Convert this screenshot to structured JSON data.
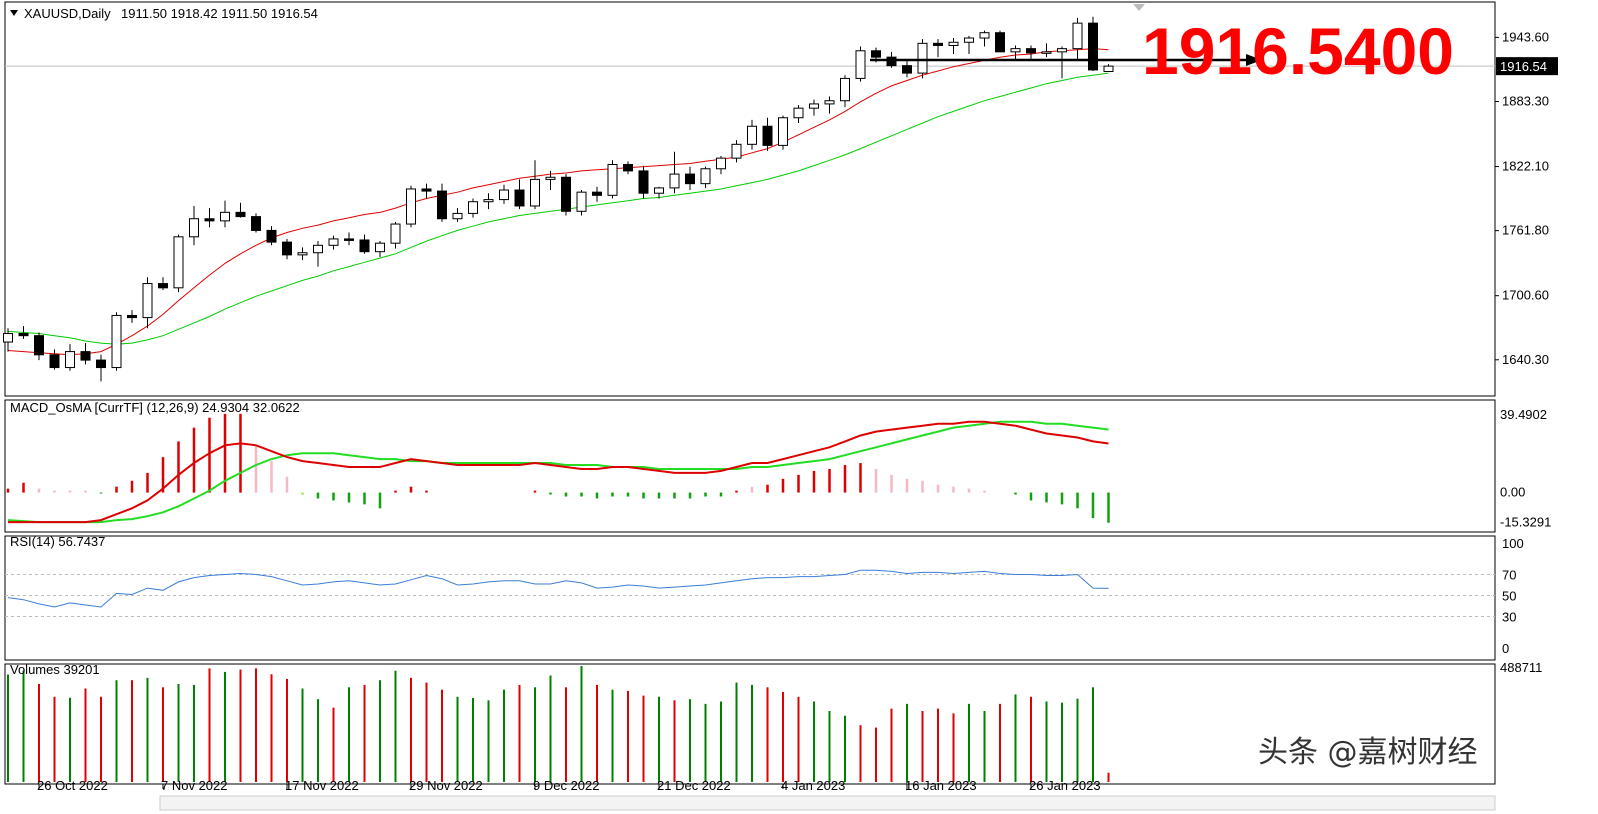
{
  "colors": {
    "bull_candle": "#ffffff",
    "bear_candle": "#000000",
    "ma_fast": "#e00000",
    "ma_slow": "#00cc00",
    "macd_line": "#dd0000",
    "signal_line": "#22dd22",
    "osma_up_strong": "#dd0000",
    "osma_up_weak": "#f5b8c2",
    "osma_down_strong": "#10a010",
    "osma_down_weak": "#88ee44",
    "rsi_line": "#3b7dd8",
    "volume_up": "#008000",
    "volume_down": "#e00000",
    "big_label": "#ff0000"
  },
  "header": {
    "symbol_label": "XAUUSD,Daily",
    "ohlc_text": "1911.50 1918.42 1911.50 1916.54"
  },
  "big_label": "1916.5400",
  "watermark": "头条 @嘉树财经",
  "chart_data": [
    {
      "type": "candlestick",
      "title": "XAUUSD,Daily",
      "ohlc": [
        1911.5,
        1918.42,
        1911.5,
        1916.54
      ],
      "current_price_label": "1916.54",
      "yticks": [
        "1943.60",
        "1883.30",
        "1822.10",
        "1761.80",
        "1700.60",
        "1640.30"
      ],
      "ylim": [
        1610,
        1975
      ],
      "xticks": [
        {
          "index": 2,
          "label": "26 Oct 2022"
        },
        {
          "index": 10,
          "label": "7 Nov 2022"
        },
        {
          "index": 18,
          "label": "17 Nov 2022"
        },
        {
          "index": 26,
          "label": "29 Nov 2022"
        },
        {
          "index": 34,
          "label": "9 Dec 2022"
        },
        {
          "index": 42,
          "label": "21 Dec 2022"
        },
        {
          "index": 50,
          "label": "4 Jan 2023"
        },
        {
          "index": 58,
          "label": "16 Jan 2023"
        },
        {
          "index": 66,
          "label": "26 Jan 2023"
        }
      ],
      "candles": [
        [
          1657,
          1670,
          1648,
          1665
        ],
        [
          1665,
          1672,
          1660,
          1663
        ],
        [
          1663,
          1666,
          1640,
          1645
        ],
        [
          1645,
          1650,
          1631,
          1633
        ],
        [
          1633,
          1655,
          1630,
          1648
        ],
        [
          1648,
          1656,
          1636,
          1640
        ],
        [
          1640,
          1645,
          1620,
          1633
        ],
        [
          1633,
          1685,
          1630,
          1682
        ],
        [
          1682,
          1687,
          1675,
          1680
        ],
        [
          1680,
          1718,
          1670,
          1712
        ],
        [
          1712,
          1718,
          1706,
          1708
        ],
        [
          1708,
          1758,
          1704,
          1756
        ],
        [
          1756,
          1785,
          1748,
          1773
        ],
        [
          1773,
          1783,
          1765,
          1771
        ],
        [
          1771,
          1790,
          1765,
          1779
        ],
        [
          1779,
          1788,
          1774,
          1775
        ],
        [
          1775,
          1778,
          1760,
          1762
        ],
        [
          1762,
          1766,
          1748,
          1751
        ],
        [
          1751,
          1754,
          1735,
          1739
        ],
        [
          1739,
          1746,
          1734,
          1741
        ],
        [
          1741,
          1752,
          1728,
          1748
        ],
        [
          1748,
          1757,
          1744,
          1754
        ],
        [
          1754,
          1760,
          1748,
          1753
        ],
        [
          1753,
          1758,
          1740,
          1742
        ],
        [
          1742,
          1752,
          1737,
          1750
        ],
        [
          1750,
          1770,
          1745,
          1768
        ],
        [
          1768,
          1804,
          1765,
          1801
        ],
        [
          1801,
          1806,
          1792,
          1799
        ],
        [
          1799,
          1806,
          1770,
          1773
        ],
        [
          1773,
          1783,
          1770,
          1778
        ],
        [
          1778,
          1792,
          1774,
          1789
        ],
        [
          1789,
          1797,
          1782,
          1791
        ],
        [
          1791,
          1805,
          1787,
          1800
        ],
        [
          1800,
          1810,
          1782,
          1785
        ],
        [
          1785,
          1828,
          1782,
          1810
        ],
        [
          1810,
          1818,
          1800,
          1812
        ],
        [
          1812,
          1815,
          1776,
          1780
        ],
        [
          1780,
          1800,
          1776,
          1798
        ],
        [
          1798,
          1803,
          1789,
          1795
        ],
        [
          1795,
          1828,
          1792,
          1824
        ],
        [
          1824,
          1827,
          1815,
          1818
        ],
        [
          1818,
          1823,
          1792,
          1797
        ],
        [
          1797,
          1803,
          1792,
          1802
        ],
        [
          1802,
          1836,
          1797,
          1815
        ],
        [
          1815,
          1822,
          1800,
          1806
        ],
        [
          1806,
          1822,
          1802,
          1820
        ],
        [
          1820,
          1832,
          1815,
          1830
        ],
        [
          1830,
          1847,
          1826,
          1843
        ],
        [
          1843,
          1866,
          1838,
          1860
        ],
        [
          1860,
          1868,
          1837,
          1842
        ],
        [
          1842,
          1870,
          1838,
          1868
        ],
        [
          1868,
          1880,
          1863,
          1877
        ],
        [
          1877,
          1885,
          1870,
          1881
        ],
        [
          1881,
          1888,
          1872,
          1884
        ],
        [
          1884,
          1908,
          1878,
          1905
        ],
        [
          1905,
          1935,
          1902,
          1931
        ],
        [
          1931,
          1934,
          1920,
          1925
        ],
        [
          1925,
          1930,
          1915,
          1917
        ],
        [
          1917,
          1923,
          1906,
          1910
        ],
        [
          1910,
          1942,
          1905,
          1938
        ],
        [
          1938,
          1942,
          1925,
          1936
        ],
        [
          1936,
          1943,
          1928,
          1939
        ],
        [
          1939,
          1945,
          1928,
          1943
        ],
        [
          1943,
          1950,
          1935,
          1948
        ],
        [
          1948,
          1950,
          1930,
          1930
        ],
        [
          1930,
          1936,
          1923,
          1933
        ],
        [
          1933,
          1936,
          1923,
          1929
        ],
        [
          1929,
          1938,
          1925,
          1930
        ],
        [
          1930,
          1935,
          1905,
          1933
        ],
        [
          1933,
          1962,
          1922,
          1957
        ],
        [
          1957,
          1963,
          1912,
          1913
        ],
        [
          1911.5,
          1918.42,
          1911.5,
          1916.54
        ]
      ],
      "ma_fast": [
        1649,
        1648,
        1647,
        1646,
        1645,
        1646,
        1648,
        1655,
        1663,
        1672,
        1683,
        1696,
        1708,
        1720,
        1731,
        1740,
        1748,
        1755,
        1760,
        1764,
        1767,
        1771,
        1774,
        1777,
        1779,
        1783,
        1788,
        1792,
        1795,
        1798,
        1802,
        1805,
        1808,
        1811,
        1813,
        1815,
        1816,
        1818,
        1819,
        1820,
        1821,
        1822,
        1823,
        1824,
        1825,
        1827,
        1829,
        1831,
        1835,
        1839,
        1845,
        1852,
        1859,
        1866,
        1874,
        1883,
        1891,
        1898,
        1903,
        1908,
        1912,
        1916,
        1919,
        1922,
        1925,
        1927,
        1928,
        1930,
        1931,
        1932,
        1933,
        1932
      ],
      "ma_slow": [
        1667,
        1666,
        1665,
        1663,
        1661,
        1658,
        1656,
        1655,
        1656,
        1659,
        1663,
        1669,
        1675,
        1681,
        1688,
        1694,
        1700,
        1705,
        1710,
        1715,
        1719,
        1724,
        1728,
        1732,
        1736,
        1740,
        1746,
        1752,
        1757,
        1762,
        1766,
        1770,
        1773,
        1776,
        1778,
        1780,
        1782,
        1784,
        1786,
        1788,
        1790,
        1792,
        1793,
        1795,
        1797,
        1799,
        1801,
        1804,
        1807,
        1810,
        1814,
        1818,
        1823,
        1828,
        1833,
        1839,
        1845,
        1851,
        1857,
        1863,
        1869,
        1874,
        1879,
        1884,
        1888,
        1892,
        1896,
        1900,
        1903,
        1906,
        1908,
        1910
      ]
    },
    {
      "type": "line",
      "title": "MACD_OsMA [CurrTF] (12,26,9) 24.9304 32.0622",
      "yticks": [
        "39.4902",
        "0.00",
        "-15.3291"
      ],
      "ylim": [
        -18,
        45
      ],
      "macd": [
        -15,
        -15,
        -15,
        -15,
        -15,
        -15,
        -14,
        -11,
        -8,
        -4,
        2,
        9,
        15,
        20,
        24,
        25,
        24,
        21,
        18,
        16,
        15,
        14,
        13,
        13,
        13,
        15,
        17,
        16,
        15,
        14,
        14,
        14,
        14,
        14,
        15,
        14,
        13,
        12,
        12,
        13,
        13,
        12,
        11,
        10,
        10,
        10,
        11,
        13,
        15,
        15,
        17,
        19,
        21,
        23,
        26,
        29,
        31,
        32,
        33,
        34,
        35,
        35,
        36,
        36,
        35,
        34,
        32,
        30,
        29,
        28,
        26,
        24.93
      ],
      "signal": [
        -14,
        -14.5,
        -15,
        -15,
        -15,
        -15,
        -15,
        -14,
        -13.5,
        -12,
        -10,
        -7,
        -3,
        1,
        6,
        10,
        14,
        17,
        19,
        20,
        20,
        20,
        19,
        18,
        17,
        17,
        16,
        16,
        15,
        15,
        15,
        15,
        15,
        15,
        15,
        15,
        14,
        14,
        14,
        13,
        13,
        13,
        12,
        12,
        12,
        12,
        12,
        12,
        13,
        13,
        14,
        15,
        16,
        17,
        19,
        21,
        23,
        25,
        27,
        29,
        31,
        33,
        34,
        35,
        36,
        36,
        36,
        35,
        35,
        34,
        33,
        32.06
      ],
      "osma": [
        2,
        5,
        2,
        1,
        1,
        1,
        -0.5,
        3,
        6,
        10,
        18,
        26,
        33,
        38,
        40,
        40,
        24,
        16,
        8,
        -1,
        -3,
        -4,
        -5,
        -6,
        -8,
        1,
        3,
        1,
        0,
        0,
        0,
        0,
        0,
        0,
        1,
        -1,
        -2,
        -2,
        -3,
        -2,
        -2,
        -3,
        -3,
        -3,
        -3,
        -2,
        -2,
        1,
        3,
        4,
        7,
        9,
        11,
        12,
        14,
        15,
        12,
        9,
        7,
        6,
        4,
        3,
        2,
        1,
        0,
        -1,
        -4,
        -5,
        -6,
        -8,
        -13,
        -15.33
      ],
      "osma_shade": [
        "d",
        "s",
        "w",
        "w",
        "w",
        "w",
        "s",
        "s",
        "s",
        "s",
        "s",
        "s",
        "s",
        "s",
        "s",
        "s",
        "w",
        "w",
        "w",
        "w",
        "s",
        "s",
        "s",
        "s",
        "s",
        "s",
        "s",
        "s",
        "s",
        "s",
        "s",
        "s",
        "s",
        "s",
        "s",
        "s",
        "s",
        "s",
        "s",
        "s",
        "s",
        "s",
        "s",
        "s",
        "s",
        "s",
        "s",
        "s",
        "w",
        "s",
        "s",
        "s",
        "s",
        "s",
        "s",
        "s",
        "w",
        "w",
        "w",
        "w",
        "w",
        "w",
        "w",
        "w",
        "s",
        "s",
        "s",
        "s",
        "s",
        "s",
        "s",
        "s"
      ]
    },
    {
      "type": "line",
      "title": "RSI(14) 56.7437",
      "yticks": [
        "100",
        "70",
        "50",
        "30",
        "0"
      ],
      "levels": [
        70,
        50,
        30
      ],
      "ylim": [
        0,
        100
      ],
      "values": [
        48,
        46,
        42,
        39,
        43,
        41,
        39,
        52,
        51,
        57,
        55,
        63,
        67,
        69,
        70,
        71,
        70,
        68,
        64,
        60,
        61,
        63,
        64,
        62,
        60,
        61,
        65,
        69,
        66,
        60,
        61,
        63,
        64,
        64,
        61,
        61,
        64,
        62,
        57,
        58,
        60,
        59,
        57,
        58,
        59,
        60,
        62,
        64,
        66,
        67,
        67,
        68,
        68,
        69,
        70,
        74,
        74,
        73,
        71,
        72,
        72,
        71,
        72,
        73,
        71,
        70,
        70,
        69,
        69,
        70,
        57,
        56.74
      ]
    },
    {
      "type": "bar",
      "title": "Volumes 39201",
      "yticks": [
        "488711"
      ],
      "ylim": [
        0,
        490000
      ],
      "values": [
        454000,
        470000,
        414000,
        360000,
        356000,
        395000,
        360000,
        430000,
        430000,
        440000,
        400000,
        414000,
        410000,
        480000,
        465000,
        475000,
        480000,
        455000,
        435000,
        395000,
        350000,
        314000,
        400000,
        410000,
        430000,
        470000,
        440000,
        420000,
        390000,
        360000,
        355000,
        345000,
        390000,
        410000,
        400000,
        450000,
        400000,
        490000,
        410000,
        390000,
        385000,
        365000,
        360000,
        345000,
        350000,
        330000,
        340000,
        420000,
        410000,
        400000,
        380000,
        360000,
        340000,
        300000,
        280000,
        240000,
        230000,
        310000,
        330000,
        300000,
        310000,
        290000,
        330000,
        300000,
        330000,
        370000,
        360000,
        340000,
        335000,
        352000,
        400000,
        39201
      ],
      "up": [
        true,
        true,
        false,
        false,
        true,
        false,
        false,
        true,
        false,
        true,
        false,
        true,
        true,
        false,
        true,
        false,
        false,
        false,
        false,
        true,
        true,
        false,
        true,
        false,
        true,
        true,
        false,
        false,
        false,
        true,
        true,
        true,
        true,
        false,
        true,
        true,
        false,
        true,
        false,
        true,
        false,
        false,
        true,
        false,
        true,
        true,
        true,
        true,
        true,
        false,
        false,
        false,
        true,
        true,
        true,
        false,
        false,
        false,
        true,
        false,
        false,
        false,
        true,
        true,
        false,
        true,
        false,
        true,
        true,
        true,
        true,
        false
      ]
    }
  ]
}
